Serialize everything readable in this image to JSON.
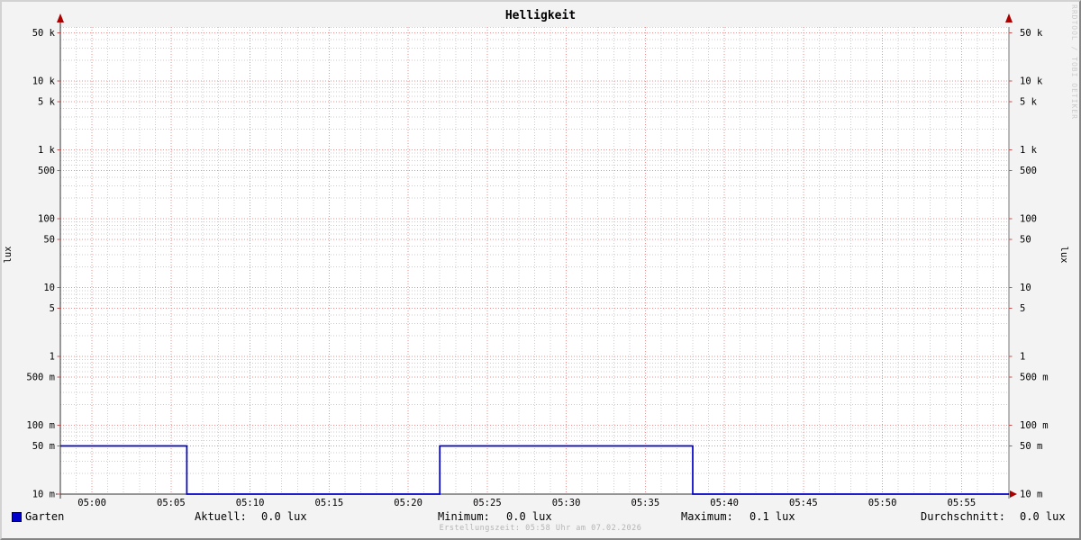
{
  "chart_data": {
    "type": "line",
    "title": "Helligkeit",
    "y_axis_label": "lux",
    "y_axis_label_right": "lux",
    "y_scale": "log10",
    "y_range": [
      0.01,
      60000
    ],
    "x_range": [
      "04:58",
      "05:58"
    ],
    "x_ticks": [
      "05:00",
      "05:05",
      "05:10",
      "05:15",
      "05:20",
      "05:25",
      "05:30",
      "05:35",
      "05:40",
      "05:45",
      "05:50",
      "05:55"
    ],
    "y_ticks": [
      {
        "label": "50 k",
        "value": 50000
      },
      {
        "label": "10 k",
        "value": 10000
      },
      {
        "label": "5 k",
        "value": 5000
      },
      {
        "label": "1 k",
        "value": 1000
      },
      {
        "label": "500",
        "value": 500
      },
      {
        "label": "100",
        "value": 100
      },
      {
        "label": "50",
        "value": 50
      },
      {
        "label": "10",
        "value": 10
      },
      {
        "label": "5",
        "value": 5
      },
      {
        "label": "1",
        "value": 1
      },
      {
        "label": "500 m",
        "value": 0.5
      },
      {
        "label": "100 m",
        "value": 0.1
      },
      {
        "label": "50 m",
        "value": 0.05
      },
      {
        "label": "10 m",
        "value": 0.01
      }
    ],
    "series": [
      {
        "name": "Garten",
        "color": "#0000c8",
        "steps": [
          {
            "from": "04:58",
            "to": "05:06",
            "value": 0.05
          },
          {
            "from": "05:06",
            "to": "05:22",
            "value": 0
          },
          {
            "from": "05:22",
            "to": "05:38",
            "value": 0.05
          },
          {
            "from": "05:38",
            "to": "05:58",
            "value": 0
          }
        ]
      }
    ],
    "grid": {
      "major_color": "#ee8f8f",
      "minor_color": "#cccccc",
      "legend_position": "bottom"
    },
    "watermark": "RRDTOOL / TOBI OETIKER",
    "footer": "Erstellungszeit: 05:58 Uhr am 07.02.2026"
  },
  "legend": {
    "series_label": "Garten",
    "stats": [
      {
        "label": "Aktuell:",
        "value": "0.0 lux"
      },
      {
        "label": "Minimum:",
        "value": "0.0 lux"
      },
      {
        "label": "Maximum:",
        "value": "0.1 lux"
      },
      {
        "label": "Durchschnitt:",
        "value": "0.0 lux"
      }
    ]
  },
  "colors": {
    "series": "#0000c8",
    "axis": "#333333",
    "arrow": "#aa0000",
    "tick": "#c05555",
    "background": "#f3f3f3",
    "canvas": "#ffffff"
  }
}
